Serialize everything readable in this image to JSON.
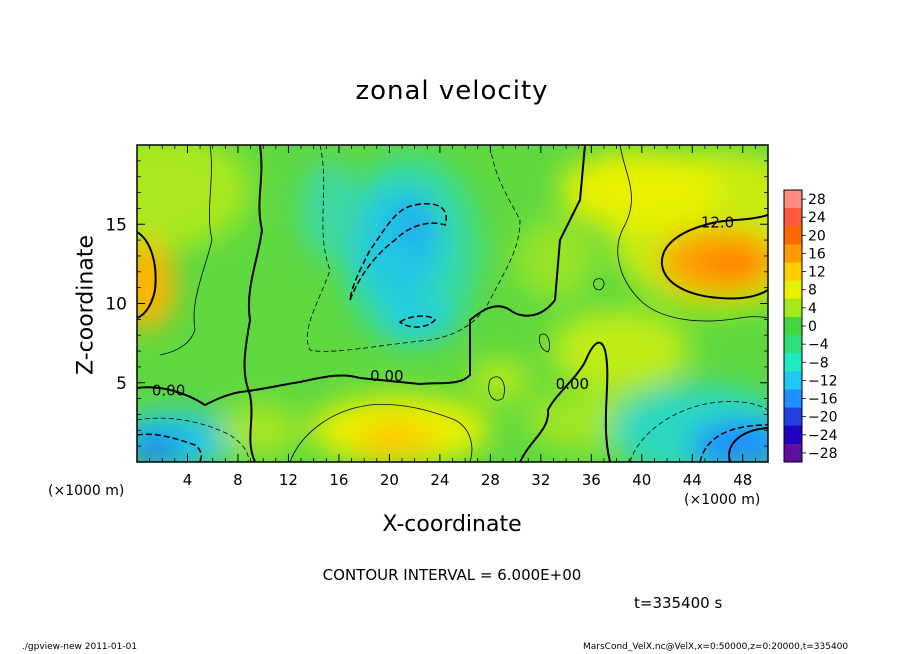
{
  "title": "zonal velocity",
  "xlabel": "X-coordinate",
  "ylabel": "Z-coordinate",
  "x_unit_left": "(×1000 m)",
  "x_unit_right": "(×1000 m)",
  "contour_interval_text": "CONTOUR INTERVAL = 6.000E+00",
  "time_text": "t=335400 s",
  "footer_left": "./gpview-new 2011-01-01",
  "footer_right": "MarsCond_VelX.nc@VelX,x=0:50000,z=0:20000,t=335400",
  "chart_data": {
    "type": "heatmap",
    "title": "zonal velocity",
    "xlabel": "X-coordinate",
    "ylabel": "Z-coordinate",
    "xlim": [
      0,
      50
    ],
    "ylim": [
      0,
      20
    ],
    "x_ticks": [
      4,
      8,
      12,
      16,
      20,
      24,
      28,
      32,
      36,
      40,
      44,
      48
    ],
    "y_ticks": [
      5,
      10,
      15
    ],
    "colorbar": {
      "labels": [
        "28",
        "24",
        "20",
        "16",
        "12",
        "8",
        "4",
        "0",
        "−4",
        "−8",
        "−12",
        "−16",
        "−20",
        "−24",
        "−28"
      ],
      "levels": [
        28,
        24,
        20,
        16,
        12,
        8,
        4,
        0,
        -4,
        -8,
        -12,
        -16,
        -20,
        -24,
        -28
      ],
      "colors": [
        "#ff8a80",
        "#ff5a3c",
        "#ff6a00",
        "#ff9a00",
        "#ffcc00",
        "#e8f000",
        "#a6e81e",
        "#44d640",
        "#2ee07a",
        "#20e8c0",
        "#20c8f0",
        "#1e90ff",
        "#2040e0",
        "#2000c0",
        "#6010a0"
      ]
    },
    "contour_labels": [
      {
        "x": 2.5,
        "y": 4.2,
        "text": "0.00"
      },
      {
        "x": 19.8,
        "y": 5.1,
        "text": "0.00"
      },
      {
        "x": 34.5,
        "y": 4.6,
        "text": "0.00"
      },
      {
        "x": 46.0,
        "y": 14.8,
        "text": "12.0"
      }
    ]
  }
}
